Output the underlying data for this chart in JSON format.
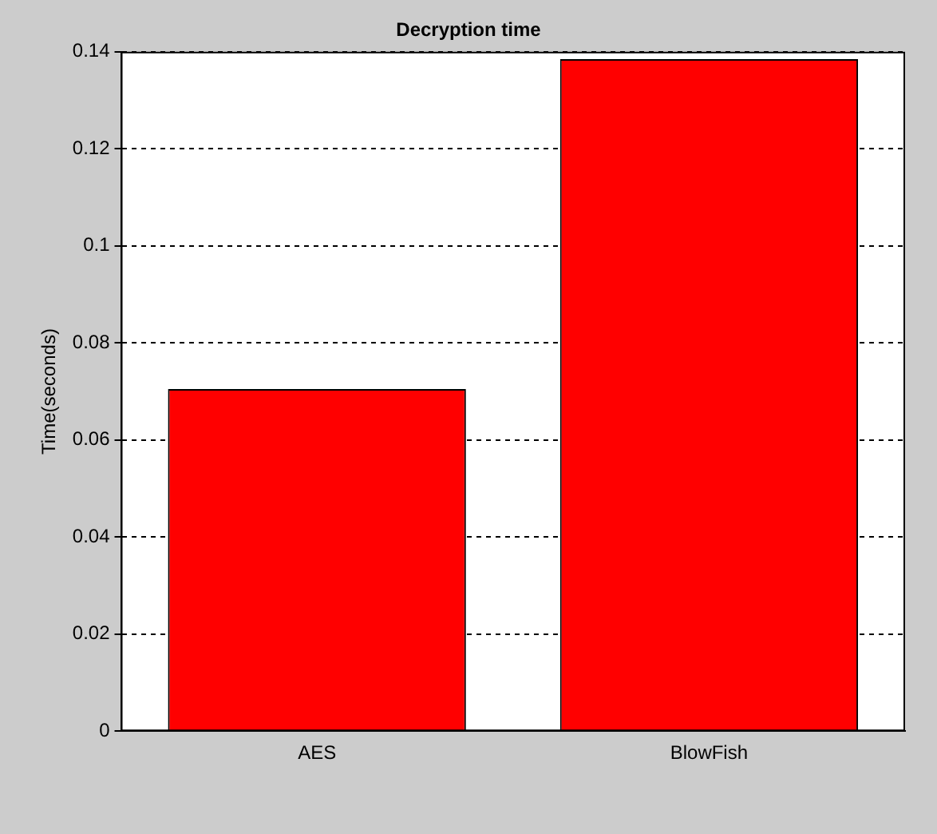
{
  "chart_data": {
    "type": "bar",
    "title": "Decryption time",
    "ylabel": "Time(seconds)",
    "categories": [
      "AES",
      "BlowFish"
    ],
    "values": [
      0.0705,
      0.1385
    ],
    "color": "#ff0000",
    "ylim": [
      0,
      0.14
    ],
    "yticks": [
      0,
      0.02,
      0.04,
      0.06,
      0.08,
      0.1,
      0.12,
      0.14
    ],
    "grid": "y"
  }
}
